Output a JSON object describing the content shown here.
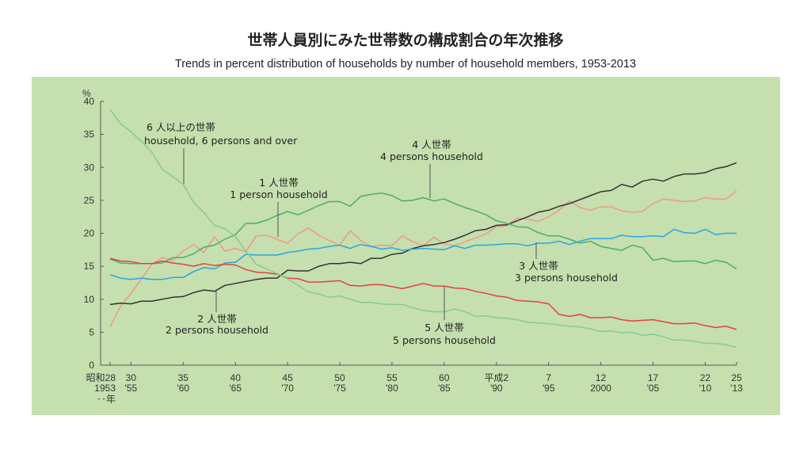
{
  "chart_data": {
    "type": "line",
    "title": "世帯人員別にみた世帯数の構成割合の年次推移",
    "subtitle": "Trends in percent distribution of households by number of household members, 1953-2013",
    "ylabel": "%",
    "ylim": [
      0,
      40
    ],
    "yticks": [
      0,
      5,
      10,
      15,
      20,
      25,
      30,
      35,
      40
    ],
    "xlim": [
      1953,
      2013
    ],
    "x_start": 1953,
    "x_end": 2013,
    "xticks": [
      {
        "year": 1953,
        "era": "昭和28",
        "western": "1953",
        "extra": "‥年"
      },
      {
        "year": 1955,
        "era": "30",
        "western": "'55"
      },
      {
        "year": 1960,
        "era": "35",
        "western": "'60"
      },
      {
        "year": 1965,
        "era": "40",
        "western": "'65"
      },
      {
        "year": 1970,
        "era": "45",
        "western": "'70"
      },
      {
        "year": 1975,
        "era": "50",
        "western": "'75"
      },
      {
        "year": 1980,
        "era": "55",
        "western": "'80"
      },
      {
        "year": 1985,
        "era": "60",
        "western": "'85"
      },
      {
        "year": 1990,
        "era": "平成2",
        "western": "'90"
      },
      {
        "year": 1995,
        "era": "7",
        "western": "'95"
      },
      {
        "year": 2000,
        "era": "12",
        "western": "2000"
      },
      {
        "year": 2005,
        "era": "17",
        "western": "'05"
      },
      {
        "year": 2010,
        "era": "22",
        "western": "'10"
      },
      {
        "year": 2013,
        "era": "25",
        "western": "'13"
      }
    ],
    "grid": false,
    "background": "#c5dfae",
    "series": [
      {
        "name_ja": "1 人世帯",
        "name": "1 person household",
        "color": "#ee9a88",
        "values": [
          5.8,
          8.9,
          10.9,
          13.1,
          15.3,
          16.3,
          15.9,
          17.3,
          18.3,
          17.1,
          19.5,
          17.3,
          17.7,
          17.2,
          19.6,
          19.7,
          19.1,
          18.5,
          19.9,
          20.8,
          19.7,
          18.9,
          18.2,
          20.4,
          18.9,
          18.0,
          18.2,
          18.1,
          19.6,
          18.7,
          18.1,
          19.4,
          18.4,
          18.1,
          18.7,
          19.3,
          19.9,
          21.0,
          21.1,
          22.3,
          22.1,
          21.8,
          22.5,
          23.5,
          24.9,
          23.9,
          23.5,
          24.0,
          24.0,
          23.4,
          23.2,
          23.3,
          24.5,
          25.2,
          25.0,
          24.8,
          24.9,
          25.4,
          25.2,
          25.2,
          26.4
        ]
      },
      {
        "name_ja": "2 人世帯",
        "name": "2 persons household",
        "color": "#333333",
        "values": [
          9.2,
          9.4,
          9.3,
          9.7,
          9.7,
          10.0,
          10.3,
          10.4,
          11.0,
          11.4,
          11.2,
          12.1,
          12.4,
          12.7,
          13.0,
          13.2,
          13.2,
          14.4,
          14.3,
          14.3,
          15.0,
          15.4,
          15.4,
          15.6,
          15.4,
          16.2,
          16.2,
          16.8,
          17.0,
          17.7,
          18.1,
          18.3,
          18.6,
          19.1,
          19.7,
          20.4,
          20.6,
          21.2,
          21.3,
          21.9,
          22.5,
          23.2,
          23.5,
          24.1,
          24.5,
          25.1,
          25.7,
          26.3,
          26.5,
          27.4,
          27.0,
          27.9,
          28.2,
          27.9,
          28.6,
          29.0,
          29.0,
          29.2,
          29.8,
          30.1,
          30.7
        ]
      },
      {
        "name_ja": "3 人世帯",
        "name": "3 persons household",
        "color": "#2aa6df",
        "values": [
          13.7,
          13.2,
          13.0,
          13.2,
          13.0,
          13.0,
          13.3,
          13.3,
          14.2,
          14.8,
          14.6,
          15.5,
          15.6,
          16.8,
          16.7,
          16.7,
          16.7,
          17.1,
          17.3,
          17.6,
          17.7,
          18.0,
          18.2,
          17.7,
          18.3,
          18.0,
          17.6,
          17.8,
          17.4,
          17.6,
          17.7,
          17.6,
          17.5,
          18.1,
          17.7,
          18.2,
          18.2,
          18.3,
          18.4,
          18.4,
          18.1,
          18.5,
          18.5,
          18.8,
          18.3,
          18.8,
          19.2,
          19.2,
          19.2,
          19.7,
          19.5,
          19.5,
          19.6,
          19.5,
          20.6,
          20.1,
          20.0,
          20.6,
          19.8,
          20.0,
          20.0
        ]
      },
      {
        "name_ja": "4 人世帯",
        "name": "4 persons household",
        "color": "#4cae68",
        "values": [
          16.1,
          15.5,
          15.4,
          15.4,
          15.4,
          15.5,
          16.3,
          16.3,
          16.9,
          17.9,
          18.2,
          19.1,
          19.8,
          21.5,
          21.5,
          22.0,
          22.7,
          23.3,
          22.8,
          23.5,
          24.2,
          24.8,
          24.8,
          24.1,
          25.6,
          25.9,
          26.1,
          25.7,
          24.9,
          25.0,
          25.4,
          24.9,
          25.2,
          24.5,
          23.9,
          23.4,
          22.8,
          21.9,
          21.5,
          21.0,
          20.9,
          20.1,
          19.6,
          19.6,
          19.1,
          18.5,
          18.8,
          18.0,
          17.7,
          17.4,
          18.2,
          17.8,
          15.9,
          16.2,
          15.7,
          15.8,
          15.8,
          15.4,
          15.9,
          15.6,
          14.6
        ]
      },
      {
        "name_ja": "5 人世帯",
        "name": "5 persons household",
        "color": "#e0433d",
        "values": [
          16.2,
          15.8,
          15.7,
          15.4,
          15.4,
          15.8,
          15.5,
          15.3,
          15.0,
          15.4,
          15.1,
          15.3,
          15.2,
          14.5,
          14.1,
          14.0,
          13.8,
          13.2,
          13.1,
          12.6,
          12.6,
          12.7,
          12.8,
          12.1,
          12.0,
          12.2,
          12.2,
          11.9,
          11.6,
          12.0,
          12.4,
          12.0,
          12.0,
          11.7,
          11.6,
          11.2,
          10.9,
          10.5,
          10.3,
          9.8,
          9.7,
          9.6,
          9.3,
          7.7,
          7.4,
          7.7,
          7.2,
          7.2,
          7.3,
          6.9,
          6.7,
          6.8,
          6.9,
          6.6,
          6.3,
          6.3,
          6.4,
          6.0,
          5.7,
          5.9,
          5.4
        ]
      },
      {
        "name_ja": "6 人以上の世帯",
        "name": "household, 6 persons and over",
        "color": "#86cc8c",
        "values": [
          38.8,
          36.6,
          35.4,
          33.9,
          32.3,
          29.7,
          28.6,
          27.4,
          24.7,
          23.1,
          21.2,
          20.7,
          19.5,
          17.3,
          15.3,
          14.6,
          13.9,
          13.1,
          12.1,
          11.1,
          10.8,
          10.3,
          10.5,
          10.0,
          9.5,
          9.5,
          9.3,
          9.2,
          9.2,
          8.7,
          8.3,
          8.1,
          8.1,
          8.5,
          8.1,
          7.4,
          7.5,
          7.2,
          7.1,
          6.9,
          6.5,
          6.4,
          6.3,
          6.1,
          5.9,
          5.8,
          5.5,
          5.1,
          5.2,
          4.9,
          5.0,
          4.5,
          4.7,
          4.3,
          3.8,
          3.8,
          3.6,
          3.3,
          3.3,
          3.1,
          2.7
        ]
      }
    ]
  }
}
